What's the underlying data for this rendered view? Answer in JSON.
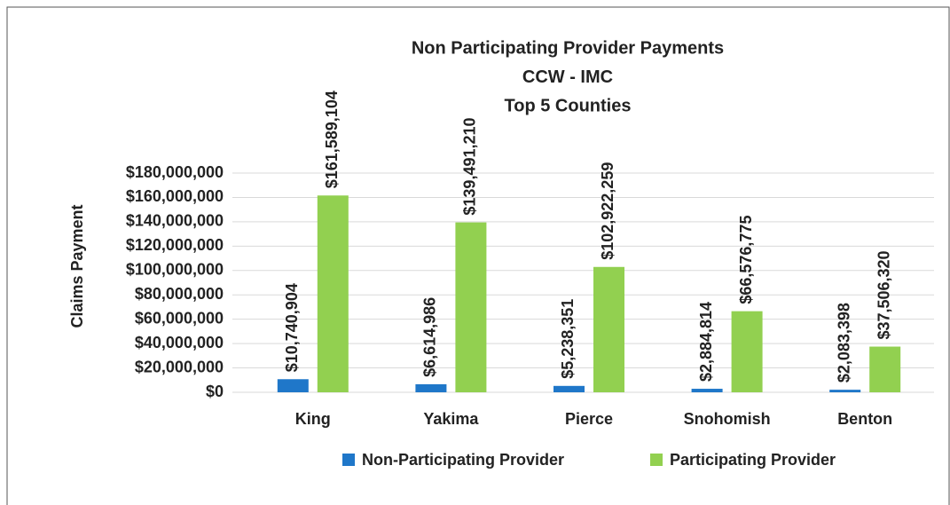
{
  "chart_data": {
    "type": "bar",
    "title": [
      "Non Participating Provider Payments",
      "CCW - IMC",
      "Top 5 Counties"
    ],
    "y_label": "Claims Payment",
    "categories": [
      "King",
      "Yakima",
      "Pierce",
      "Snohomish",
      "Benton"
    ],
    "series": [
      {
        "name": "Non-Participating Provider",
        "color": "#1f77c9",
        "values": [
          10740904,
          6614986,
          5238351,
          2884814,
          2083398
        ],
        "value_labels": [
          "$10,740,904",
          "$6,614,986",
          "$5,238,351",
          "$2,884,814",
          "$2,083,398"
        ]
      },
      {
        "name": "Participating Provider",
        "color": "#92d050",
        "values": [
          161589104,
          139491210,
          102922259,
          66576775,
          37506320
        ],
        "value_labels": [
          "$161,589,104",
          "$139,491,210",
          "$102,922,259",
          "$66,576,775",
          "$37,506,320"
        ]
      }
    ],
    "ylim": [
      0,
      180000000
    ],
    "yticks": [
      {
        "value": 0,
        "label": "$0"
      },
      {
        "value": 20000000,
        "label": "$20,000,000"
      },
      {
        "value": 40000000,
        "label": "$40,000,000"
      },
      {
        "value": 60000000,
        "label": "$60,000,000"
      },
      {
        "value": 80000000,
        "label": "$80,000,000"
      },
      {
        "value": 100000000,
        "label": "$100,000,000"
      },
      {
        "value": 120000000,
        "label": "$120,000,000"
      },
      {
        "value": 140000000,
        "label": "$140,000,000"
      },
      {
        "value": 160000000,
        "label": "$160,000,000"
      },
      {
        "value": 180000000,
        "label": "$180,000,000"
      }
    ],
    "grid": true,
    "legend": "bottom"
  }
}
